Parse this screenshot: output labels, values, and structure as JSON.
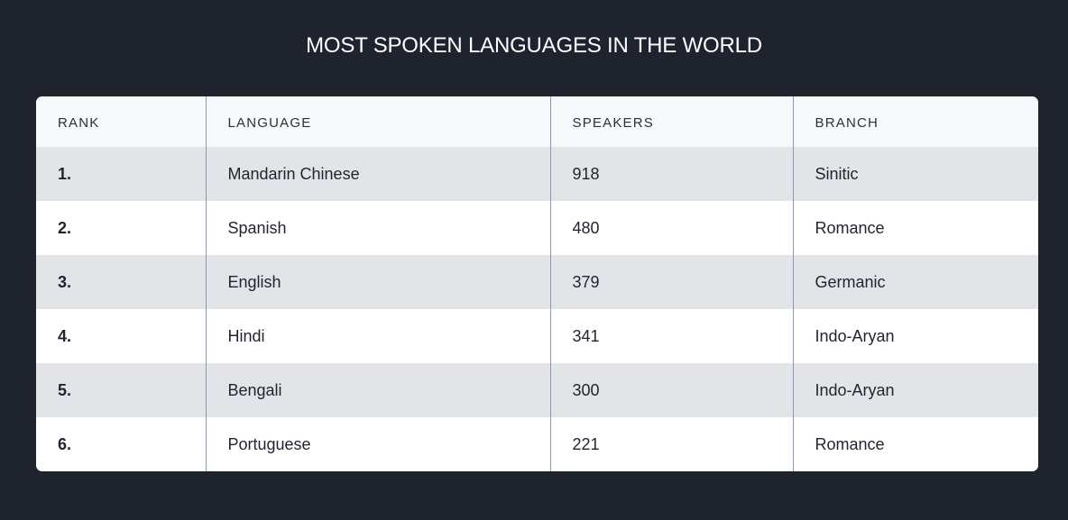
{
  "title": "MOST SPOKEN LANGUAGES IN THE WORLD",
  "table": {
    "headers": [
      "RANK",
      "LANGUAGE",
      "SPEAKERS",
      "BRANCH"
    ],
    "rows": [
      {
        "rank": "1.",
        "language": "Mandarin Chinese",
        "speakers": "918",
        "branch": "Sinitic"
      },
      {
        "rank": "2.",
        "language": "Spanish",
        "speakers": "480",
        "branch": "Romance"
      },
      {
        "rank": "3.",
        "language": "English",
        "speakers": "379",
        "branch": "Germanic"
      },
      {
        "rank": "4.",
        "language": "Hindi",
        "speakers": "341",
        "branch": "Indo-Aryan"
      },
      {
        "rank": "5.",
        "language": "Bengali",
        "speakers": "300",
        "branch": "Indo-Aryan"
      },
      {
        "rank": "6.",
        "language": "Portuguese",
        "speakers": "221",
        "branch": "Romance"
      }
    ]
  },
  "colors": {
    "background": "#1e232e",
    "header_bg": "#f7f8fa",
    "row_stripe": "#e3e4e8",
    "row_plain": "#ffffff",
    "column_divider": "#8a98b4"
  }
}
